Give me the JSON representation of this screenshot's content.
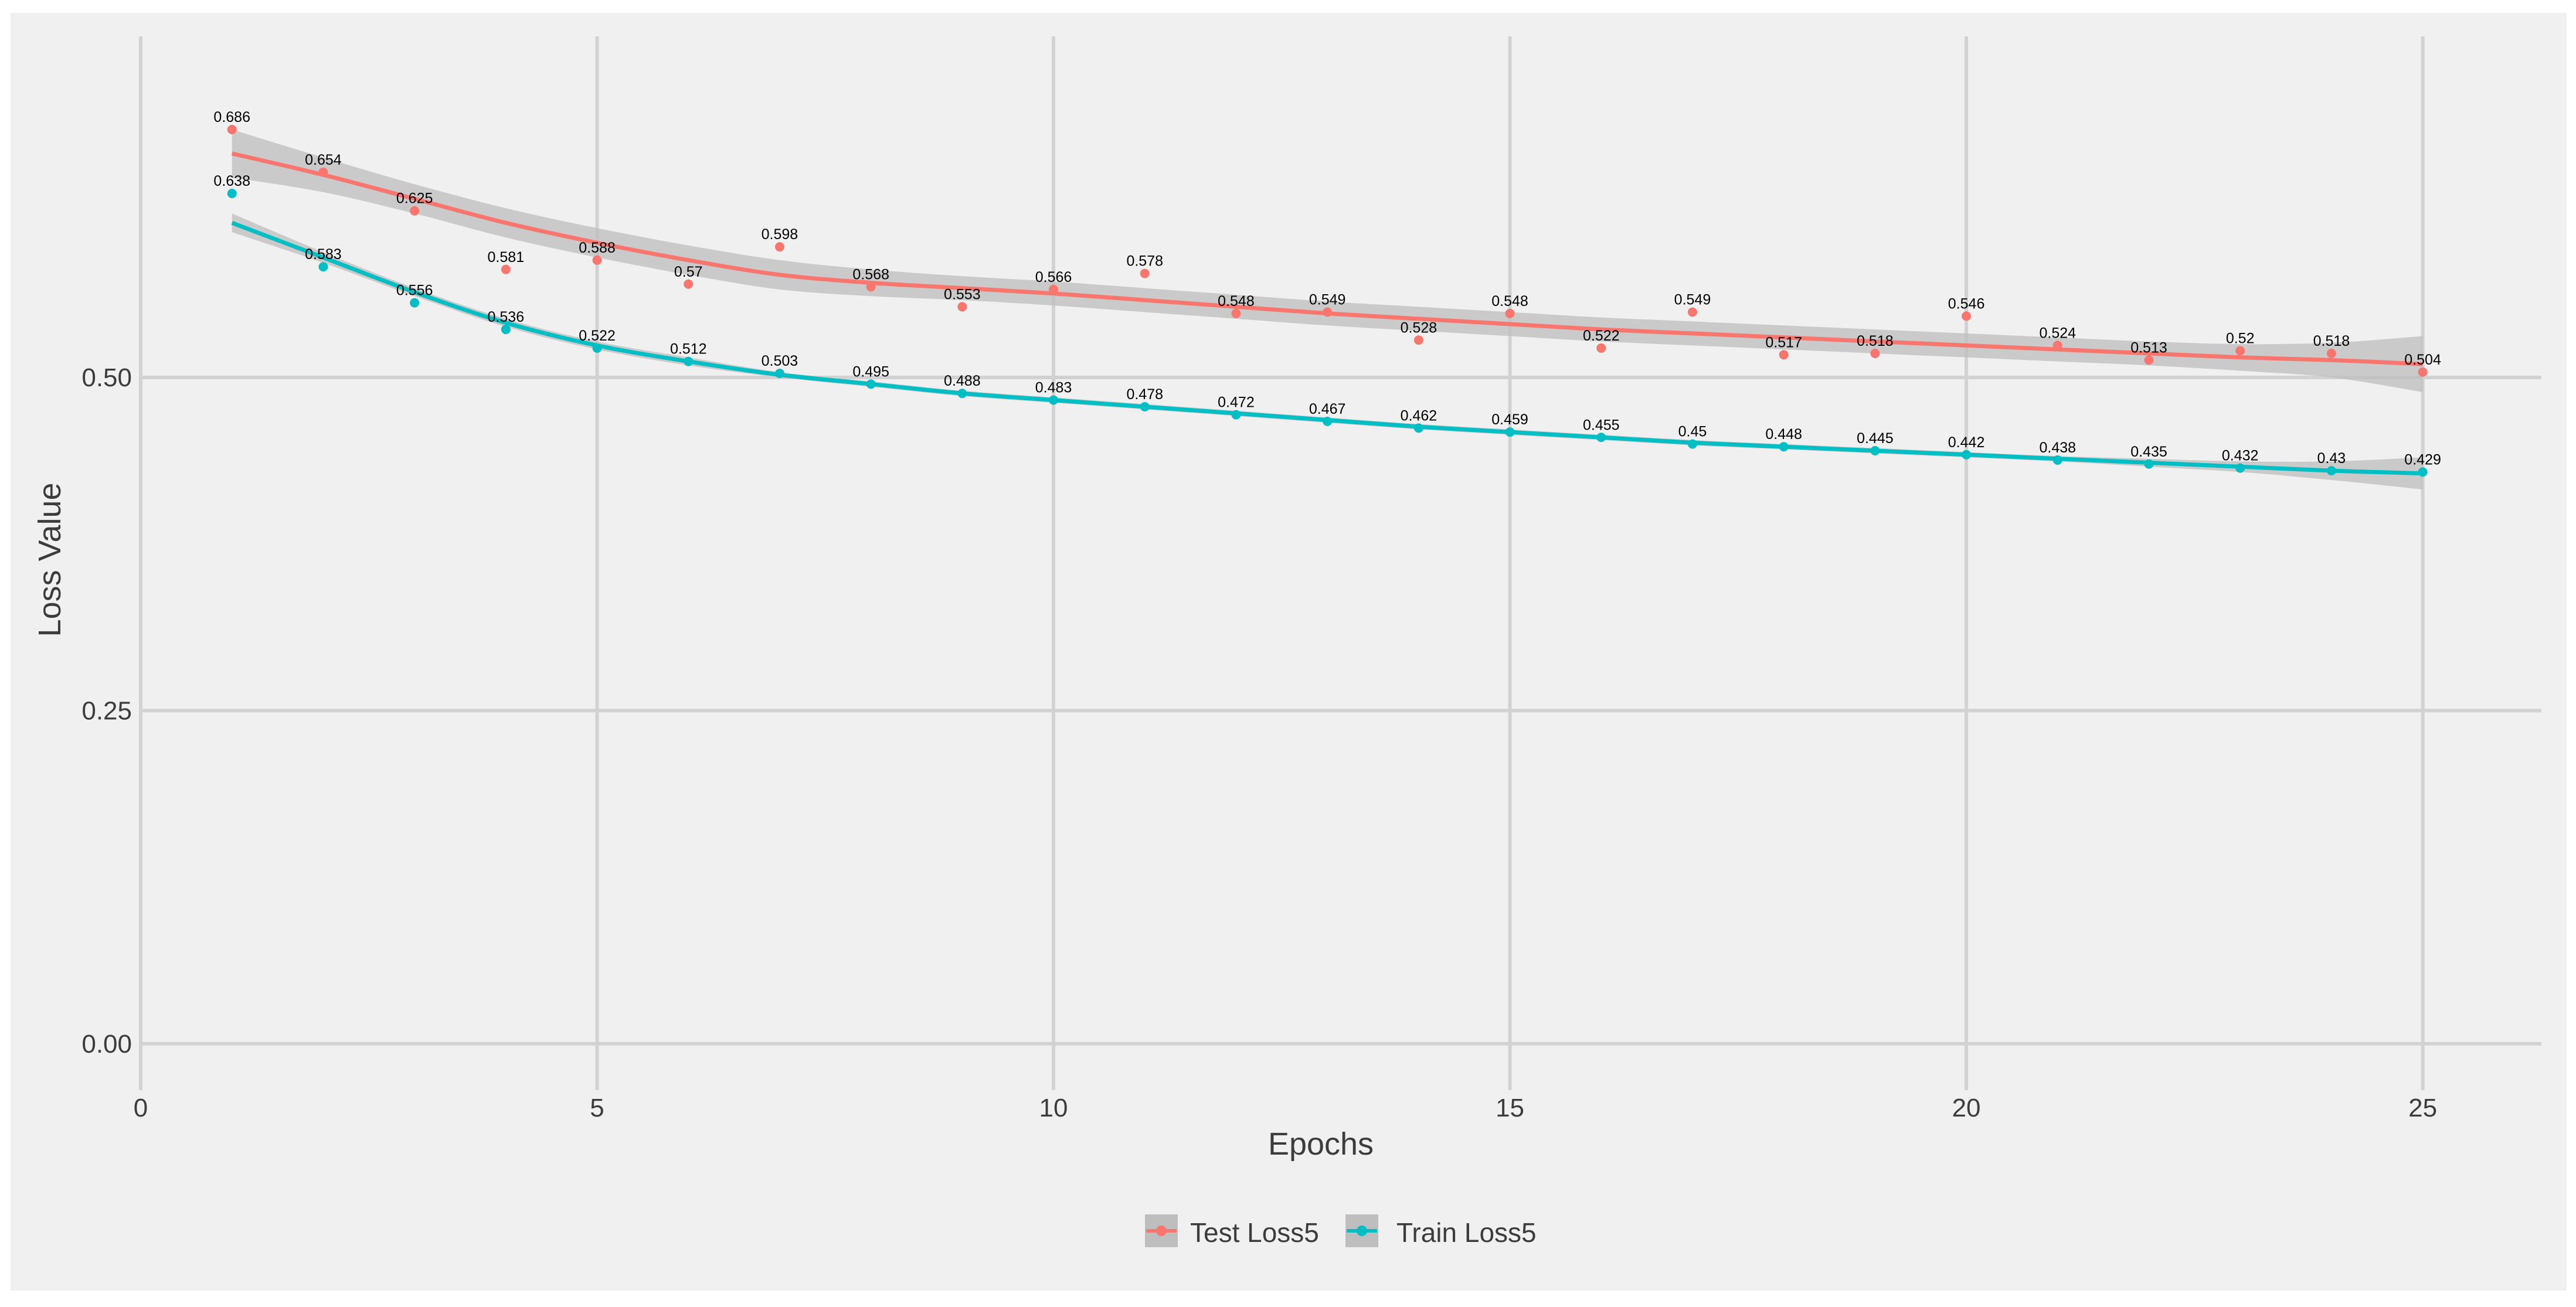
{
  "colors": {
    "background": "#F0F0F0",
    "outer": "#FFFFFF",
    "grid": "#D2D2D2",
    "band": "#BEBEBE",
    "test": "#F8766D",
    "train": "#00BFC4",
    "text": "#3C3C3C",
    "label": "#000000"
  },
  "chart_data": {
    "type": "line",
    "title": "",
    "xlabel": "Epochs",
    "ylabel": "Loss Value",
    "xlim": [
      0,
      26.3
    ],
    "ylim": [
      -0.015,
      0.77
    ],
    "xticks": [
      0,
      5,
      10,
      15,
      20,
      25
    ],
    "yticks": [
      0.0,
      0.25,
      0.5
    ],
    "xtick_labels": [
      "0",
      "5",
      "10",
      "15",
      "20",
      "25"
    ],
    "ytick_labels": [
      "0.00",
      "0.25",
      "0.50"
    ],
    "grid": true,
    "legend_position": "bottom",
    "x": [
      1,
      2,
      3,
      4,
      5,
      6,
      7,
      8,
      9,
      10,
      11,
      12,
      13,
      14,
      15,
      16,
      17,
      18,
      19,
      20,
      21,
      22,
      23,
      24,
      25
    ],
    "series": [
      {
        "name": "Test Loss5",
        "color": "#F8766D",
        "values": [
          0.686,
          0.654,
          0.625,
          0.581,
          0.588,
          0.57,
          0.598,
          0.568,
          0.553,
          0.566,
          0.578,
          0.548,
          0.549,
          0.528,
          0.548,
          0.522,
          0.549,
          0.517,
          0.518,
          0.546,
          0.524,
          0.513,
          0.52,
          0.518,
          0.504
        ],
        "labels": [
          "0.686",
          "0.654",
          "0.625",
          "0.581",
          "0.588",
          "0.57",
          "0.598",
          "0.568",
          "0.553",
          "0.566",
          "0.578",
          "0.548",
          "0.549",
          "0.528",
          "0.548",
          "0.522",
          "0.549",
          "0.517",
          "0.518",
          "0.546",
          "0.524",
          "0.513",
          "0.52",
          "0.518",
          "0.504"
        ],
        "smooth": [
          0.668,
          0.652,
          0.634,
          0.616,
          0.601,
          0.588,
          0.577,
          0.571,
          0.567,
          0.563,
          0.558,
          0.553,
          0.548,
          0.544,
          0.54,
          0.536,
          0.533,
          0.53,
          0.527,
          0.524,
          0.521,
          0.518,
          0.515,
          0.513,
          0.51
        ],
        "band_halfwidth": [
          0.018,
          0.013,
          0.011,
          0.011,
          0.011,
          0.011,
          0.011,
          0.01,
          0.009,
          0.009,
          0.009,
          0.009,
          0.009,
          0.009,
          0.009,
          0.009,
          0.009,
          0.009,
          0.009,
          0.009,
          0.009,
          0.009,
          0.01,
          0.013,
          0.021
        ]
      },
      {
        "name": "Train Loss5",
        "color": "#00BFC4",
        "values": [
          0.638,
          0.583,
          0.556,
          0.536,
          0.522,
          0.512,
          0.503,
          0.495,
          0.488,
          0.483,
          0.478,
          0.472,
          0.467,
          0.462,
          0.459,
          0.455,
          0.45,
          0.448,
          0.445,
          0.442,
          0.438,
          0.435,
          0.432,
          0.43,
          0.429
        ],
        "labels": [
          "0.638",
          "0.583",
          "0.556",
          "0.536",
          "0.522",
          "0.512",
          "0.503",
          "0.495",
          "0.488",
          "0.483",
          "0.478",
          "0.472",
          "0.467",
          "0.462",
          "0.459",
          "0.455",
          "0.45",
          "0.448",
          "0.445",
          "0.442",
          "0.438",
          "0.435",
          "0.432",
          "0.43",
          "0.429"
        ],
        "smooth": [
          0.616,
          0.59,
          0.564,
          0.541,
          0.524,
          0.512,
          0.502,
          0.495,
          0.488,
          0.483,
          0.478,
          0.473,
          0.468,
          0.463,
          0.459,
          0.455,
          0.451,
          0.448,
          0.445,
          0.442,
          0.439,
          0.436,
          0.433,
          0.43,
          0.428
        ],
        "band_halfwidth": [
          0.007,
          0.004,
          0.003,
          0.003,
          0.003,
          0.003,
          0.002,
          0.002,
          0.002,
          0.002,
          0.002,
          0.002,
          0.002,
          0.002,
          0.002,
          0.002,
          0.002,
          0.002,
          0.002,
          0.002,
          0.002,
          0.003,
          0.004,
          0.007,
          0.012
        ]
      }
    ]
  }
}
